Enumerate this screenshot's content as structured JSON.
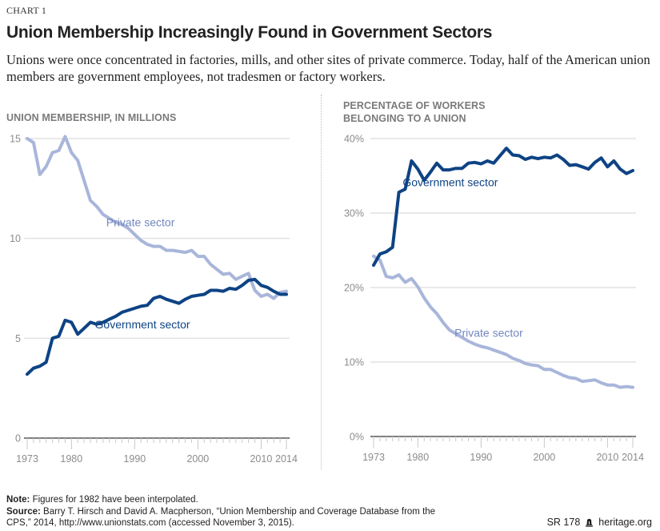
{
  "kicker": "CHART 1",
  "title": "Union Membership Increasingly Found in Government Sectors",
  "subtitle": "Unions were once concentrated in factories, mills, and other sites of private commerce. Today, half of the American union members are government employees, not tradesmen or factory workers.",
  "colors": {
    "private": "#a9b6da",
    "government": "#0e4384",
    "grid": "#e2e2e2",
    "axis": "#555555"
  },
  "footer": {
    "note_label": "Note:",
    "note_text": " Figures for 1982 have been interpolated.",
    "source_label": "Source:",
    "source_text": " Barry T. Hirsch and David A. Macpherson, “Union Membership and Coverage Database from the CPS,” 2014, http://www.unionstats.com (accessed November 3, 2015).",
    "report_id": "SR 178",
    "brand_icon": "liberty-bell-icon",
    "brand": "heritage.org"
  },
  "chart_data": [
    {
      "type": "line",
      "title": "UNION MEMBERSHIP, IN MILLIONS",
      "xlabel": "",
      "ylabel": "",
      "xlim": [
        1973,
        2014
      ],
      "ylim": [
        0,
        15
      ],
      "yticks": [
        0,
        5,
        10,
        15
      ],
      "ytick_labels": [
        "0",
        "5",
        "10",
        "15"
      ],
      "xticks": [
        1973,
        1980,
        1990,
        2000,
        2010,
        2014
      ],
      "xtick_labels": [
        "1973",
        "1980",
        "1990",
        "2000",
        "2010",
        "2014"
      ],
      "grid": true,
      "x": [
        1973,
        1974,
        1975,
        1976,
        1977,
        1978,
        1979,
        1980,
        1981,
        1982,
        1983,
        1984,
        1985,
        1986,
        1987,
        1988,
        1989,
        1990,
        1991,
        1992,
        1993,
        1994,
        1995,
        1996,
        1997,
        1998,
        1999,
        2000,
        2001,
        2002,
        2003,
        2004,
        2005,
        2006,
        2007,
        2008,
        2009,
        2010,
        2011,
        2012,
        2013,
        2014
      ],
      "series": [
        {
          "name": "Private sector",
          "label_x": 1985.5,
          "label_y": 10.6,
          "values": [
            15.0,
            14.8,
            13.2,
            13.6,
            14.3,
            14.4,
            15.1,
            14.3,
            13.9,
            12.9,
            11.9,
            11.6,
            11.2,
            11.0,
            10.8,
            10.7,
            10.5,
            10.2,
            9.9,
            9.7,
            9.6,
            9.6,
            9.4,
            9.4,
            9.35,
            9.3,
            9.4,
            9.1,
            9.1,
            8.7,
            8.45,
            8.2,
            8.25,
            7.95,
            8.1,
            8.25,
            7.4,
            7.1,
            7.2,
            7.0,
            7.3,
            7.35
          ]
        },
        {
          "name": "Government sector",
          "label_x": 1983.7,
          "label_y": 5.5,
          "values": [
            3.2,
            3.5,
            3.6,
            3.8,
            5.0,
            5.1,
            5.9,
            5.8,
            5.2,
            5.5,
            5.8,
            5.7,
            5.8,
            5.95,
            6.1,
            6.3,
            6.4,
            6.5,
            6.6,
            6.65,
            7.0,
            7.1,
            6.95,
            6.85,
            6.75,
            6.95,
            7.1,
            7.15,
            7.2,
            7.4,
            7.4,
            7.35,
            7.5,
            7.45,
            7.65,
            7.9,
            7.95,
            7.65,
            7.55,
            7.35,
            7.2,
            7.2
          ]
        }
      ]
    },
    {
      "type": "line",
      "title": "PERCENTAGE OF WORKERS BELONGING TO A UNION",
      "xlabel": "",
      "ylabel": "",
      "xlim": [
        1973,
        2014
      ],
      "ylim": [
        0,
        40
      ],
      "yticks": [
        0,
        10,
        20,
        30,
        40
      ],
      "ytick_labels": [
        "0%",
        "10%",
        "20%",
        "30%",
        "40%"
      ],
      "xticks": [
        1973,
        1980,
        1990,
        2000,
        2010,
        2014
      ],
      "xtick_labels": [
        "1973",
        "1980",
        "1990",
        "2000",
        "2010",
        "2014"
      ],
      "grid": true,
      "x": [
        1973,
        1974,
        1975,
        1976,
        1977,
        1978,
        1979,
        1980,
        1981,
        1982,
        1983,
        1984,
        1985,
        1986,
        1987,
        1988,
        1989,
        1990,
        1991,
        1992,
        1993,
        1994,
        1995,
        1996,
        1997,
        1998,
        1999,
        2000,
        2001,
        2002,
        2003,
        2004,
        2005,
        2006,
        2007,
        2008,
        2009,
        2010,
        2011,
        2012,
        2013,
        2014
      ],
      "series": [
        {
          "name": "Government sector",
          "label_x": 1977.6,
          "label_y": 33.6,
          "values": [
            23.0,
            24.5,
            24.8,
            25.4,
            32.8,
            33.2,
            37.0,
            35.9,
            34.4,
            35.5,
            36.7,
            35.8,
            35.8,
            36.0,
            36.0,
            36.7,
            36.8,
            36.6,
            37.0,
            36.7,
            37.7,
            38.7,
            37.8,
            37.7,
            37.2,
            37.5,
            37.3,
            37.5,
            37.4,
            37.8,
            37.2,
            36.4,
            36.5,
            36.2,
            35.9,
            36.8,
            37.4,
            36.2,
            37.0,
            35.9,
            35.3,
            35.7
          ]
        },
        {
          "name": "Private sector",
          "label_x": 1985.8,
          "label_y": 13.4,
          "values": [
            24.2,
            23.7,
            21.5,
            21.3,
            21.7,
            20.7,
            21.2,
            20.1,
            18.6,
            17.4,
            16.5,
            15.3,
            14.3,
            13.8,
            13.3,
            12.8,
            12.4,
            12.1,
            11.9,
            11.6,
            11.3,
            11.0,
            10.5,
            10.2,
            9.8,
            9.6,
            9.5,
            9.0,
            9.0,
            8.6,
            8.2,
            7.9,
            7.8,
            7.4,
            7.5,
            7.6,
            7.2,
            6.9,
            6.9,
            6.6,
            6.7,
            6.6
          ]
        }
      ]
    }
  ]
}
